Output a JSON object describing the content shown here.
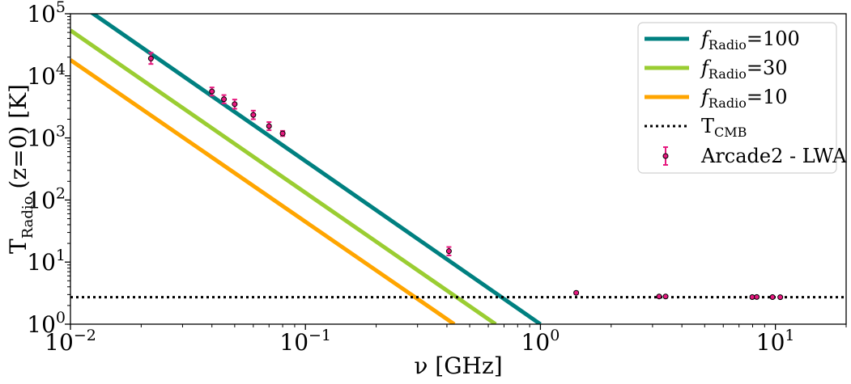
{
  "chart_data": {
    "type": "line",
    "xscale": "log",
    "yscale": "log",
    "xlim": [
      0.01,
      20
    ],
    "ylim": [
      1,
      100000
    ],
    "xlabel": "ν [GHz]",
    "ylabel": "T_Radio (z=0) [K]",
    "ylabel_parts": {
      "main": "T",
      "sub": "Radio",
      "rest": " (z=0) [K]"
    },
    "grid": false,
    "legend_position": "top-right",
    "x_ticks": [
      {
        "value": 0.01,
        "base": "10",
        "exp": "−2"
      },
      {
        "value": 0.1,
        "base": "10",
        "exp": "−1"
      },
      {
        "value": 1,
        "base": "10",
        "exp": "0"
      },
      {
        "value": 10,
        "base": "10",
        "exp": "1"
      }
    ],
    "y_ticks": [
      {
        "value": 1,
        "base": "10",
        "exp": "0"
      },
      {
        "value": 10,
        "base": "10",
        "exp": "1"
      },
      {
        "value": 100,
        "base": "10",
        "exp": "2"
      },
      {
        "value": 1000,
        "base": "10",
        "exp": "3"
      },
      {
        "value": 10000,
        "base": "10",
        "exp": "4"
      },
      {
        "value": 100000,
        "base": "10",
        "exp": "5"
      }
    ],
    "series": [
      {
        "name": "fRadio=100",
        "label_main": "f",
        "label_sub": "Radio",
        "label_rest": "=100",
        "color": "#008080",
        "style": "solid",
        "x": [
          0.01,
          1.0
        ],
        "y": [
          180000,
          1.0
        ]
      },
      {
        "name": "fRadio=30",
        "label_main": "f",
        "label_sub": "Radio",
        "label_rest": "=30",
        "color": "#9ACD32",
        "style": "solid",
        "x": [
          0.01,
          0.645
        ],
        "y": [
          54000,
          1.0
        ]
      },
      {
        "name": "fRadio=10",
        "label_main": "f",
        "label_sub": "Radio",
        "label_rest": "=10",
        "color": "#FFA500",
        "style": "solid",
        "x": [
          0.01,
          0.43
        ],
        "y": [
          18000,
          1.0
        ]
      },
      {
        "name": "TCMB",
        "label_main": "T",
        "label_sub": "CMB",
        "label_rest": "",
        "color": "#000000",
        "style": "dotted",
        "x": [
          0.01,
          20
        ],
        "y": [
          2.725,
          2.725
        ]
      }
    ],
    "errorbar_series": {
      "name": "Arcade2 - LWA",
      "color": "#E6197F",
      "points": [
        {
          "x": 0.022,
          "y": 19000,
          "lo": 15500,
          "hi": 23500
        },
        {
          "x": 0.04,
          "y": 5600,
          "lo": 4800,
          "hi": 6500
        },
        {
          "x": 0.045,
          "y": 4200,
          "lo": 3600,
          "hi": 4900
        },
        {
          "x": 0.05,
          "y": 3500,
          "lo": 2950,
          "hi": 4150
        },
        {
          "x": 0.06,
          "y": 2350,
          "lo": 2000,
          "hi": 2750
        },
        {
          "x": 0.07,
          "y": 1550,
          "lo": 1330,
          "hi": 1800
        },
        {
          "x": 0.08,
          "y": 1180,
          "lo": 1070,
          "hi": 1300
        },
        {
          "x": 0.408,
          "y": 15,
          "lo": 12.8,
          "hi": 17.5
        },
        {
          "x": 1.42,
          "y": 3.2,
          "lo": 3.05,
          "hi": 3.35
        },
        {
          "x": 3.2,
          "y": 2.79,
          "lo": 2.74,
          "hi": 2.84
        },
        {
          "x": 3.41,
          "y": 2.79,
          "lo": 2.74,
          "hi": 2.84
        },
        {
          "x": 7.97,
          "y": 2.73,
          "lo": 2.69,
          "hi": 2.77
        },
        {
          "x": 8.33,
          "y": 2.74,
          "lo": 2.7,
          "hi": 2.78
        },
        {
          "x": 9.72,
          "y": 2.73,
          "lo": 2.69,
          "hi": 2.77
        },
        {
          "x": 10.49,
          "y": 2.72,
          "lo": 2.68,
          "hi": 2.76
        }
      ]
    }
  }
}
